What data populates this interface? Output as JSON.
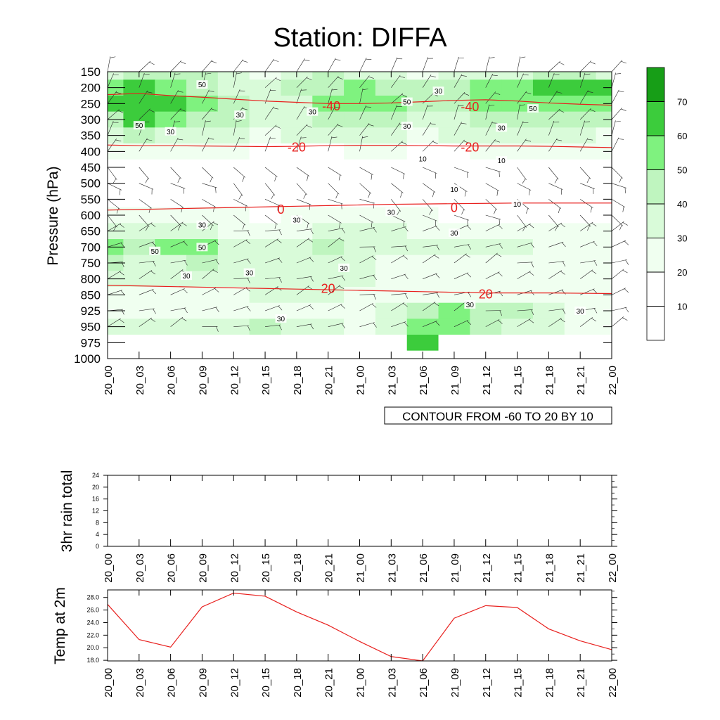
{
  "title": "Station: DIFFA",
  "colors": {
    "temp_contour": "#e8201e",
    "temp_series": "#e8201e",
    "rh_fill": [
      "#ffffff",
      "#ffffff",
      "#f0fff0",
      "#d9fbd9",
      "#bff5bf",
      "#7ff27f",
      "#3ccc3c",
      "#179e17"
    ],
    "wind": "#222222",
    "axis": "#000000"
  },
  "time_labels": [
    "20_00",
    "20_03",
    "20_06",
    "20_09",
    "20_12",
    "20_15",
    "20_18",
    "20_21",
    "21_00",
    "21_03",
    "21_06",
    "21_09",
    "21_12",
    "21_15",
    "21_18",
    "21_21",
    "22_00"
  ],
  "chart_data": [
    {
      "type": "heatmap",
      "title": "Station: DIFFA",
      "ylabel": "Pressure (hPa)",
      "xlabel": "",
      "pressure_levels": [
        150,
        200,
        250,
        300,
        350,
        400,
        450,
        500,
        550,
        600,
        650,
        700,
        750,
        800,
        850,
        925,
        950,
        975,
        1000
      ],
      "info_label": "CONTOUR FROM -60 TO 20 BY 10",
      "colorbar": {
        "levels": [
          10,
          20,
          30,
          40,
          50,
          60,
          70
        ],
        "labels": [
          "10",
          "20",
          "30",
          "40",
          "50",
          "60",
          "70"
        ]
      },
      "rh_grid": [
        [
          35,
          40,
          45,
          40,
          30,
          25,
          30,
          40,
          38,
          30,
          25,
          30,
          30,
          35,
          45,
          40,
          35
        ],
        [
          55,
          60,
          55,
          45,
          35,
          30,
          40,
          45,
          55,
          45,
          40,
          45,
          50,
          55,
          65,
          65,
          60
        ],
        [
          62,
          68,
          62,
          50,
          40,
          35,
          38,
          50,
          58,
          50,
          40,
          48,
          52,
          55,
          55,
          58,
          55
        ],
        [
          48,
          65,
          55,
          45,
          40,
          38,
          35,
          40,
          42,
          40,
          35,
          38,
          40,
          45,
          45,
          45,
          42
        ],
        [
          30,
          40,
          30,
          35,
          30,
          28,
          30,
          30,
          32,
          30,
          28,
          30,
          30,
          30,
          30,
          30,
          28
        ],
        [
          20,
          22,
          20,
          20,
          20,
          18,
          18,
          18,
          20,
          20,
          18,
          18,
          20,
          20,
          20,
          20,
          20
        ],
        [
          10,
          10,
          10,
          10,
          10,
          10,
          10,
          10,
          10,
          10,
          10,
          8,
          8,
          8,
          8,
          8,
          8
        ],
        [
          8,
          8,
          10,
          10,
          10,
          8,
          8,
          8,
          10,
          10,
          10,
          10,
          8,
          8,
          8,
          8,
          8
        ],
        [
          12,
          15,
          15,
          15,
          15,
          15,
          12,
          12,
          12,
          12,
          10,
          10,
          10,
          10,
          10,
          10,
          10
        ],
        [
          25,
          22,
          22,
          22,
          20,
          18,
          20,
          22,
          25,
          25,
          20,
          18,
          18,
          18,
          18,
          18,
          18
        ],
        [
          38,
          35,
          32,
          32,
          28,
          25,
          28,
          30,
          32,
          30,
          28,
          25,
          22,
          20,
          20,
          20,
          20
        ],
        [
          55,
          45,
          50,
          52,
          38,
          32,
          35,
          42,
          38,
          30,
          30,
          30,
          30,
          30,
          28,
          28,
          28
        ],
        [
          40,
          38,
          38,
          40,
          35,
          32,
          35,
          35,
          30,
          28,
          28,
          28,
          28,
          28,
          28,
          28,
          28
        ],
        [
          30,
          30,
          30,
          30,
          32,
          32,
          32,
          32,
          30,
          25,
          22,
          22,
          22,
          22,
          22,
          22,
          22
        ],
        [
          25,
          25,
          25,
          25,
          28,
          30,
          35,
          30,
          25,
          22,
          22,
          22,
          25,
          25,
          25,
          25,
          25
        ],
        [
          28,
          28,
          28,
          28,
          28,
          28,
          28,
          28,
          28,
          30,
          40,
          50,
          48,
          40,
          30,
          28,
          28
        ],
        [
          30,
          30,
          35,
          35,
          38,
          40,
          35,
          30,
          28,
          30,
          55,
          55,
          45,
          35,
          30,
          28,
          28
        ],
        [
          0,
          0,
          0,
          0,
          0,
          0,
          0,
          0,
          0,
          0,
          62,
          0,
          0,
          0,
          0,
          0,
          0
        ],
        [
          0,
          0,
          0,
          0,
          0,
          0,
          0,
          0,
          0,
          0,
          0,
          0,
          0,
          0,
          0,
          0,
          0
        ]
      ],
      "temperature_contours": [
        {
          "label": "-40",
          "p": [
            222,
            218,
            225,
            230,
            236,
            242,
            246,
            250,
            250,
            248,
            244,
            240,
            238,
            242,
            248,
            252,
            255
          ]
        },
        {
          "label": "-20",
          "p": [
            380,
            382,
            382,
            383,
            384,
            385,
            384,
            382,
            381,
            381,
            382,
            383,
            383,
            383,
            384,
            386,
            388
          ]
        },
        {
          "label": "0",
          "p": [
            584,
            582,
            580,
            578,
            576,
            574,
            572,
            570,
            568,
            566,
            565,
            564,
            563,
            562,
            562,
            562,
            562
          ]
        },
        {
          "label": "20",
          "p": [
            820,
            822,
            824,
            826,
            828,
            830,
            832,
            834,
            836,
            838,
            840,
            842,
            844,
            844,
            844,
            845,
            846
          ]
        }
      ],
      "temp_contour_labels": [
        {
          "text": "-40",
          "t": 7.1,
          "p": 258
        },
        {
          "text": "-40",
          "t": 11.5,
          "p": 260
        },
        {
          "text": "-20",
          "t": 6,
          "p": 387
        },
        {
          "text": "-20",
          "t": 11.5,
          "p": 387
        },
        {
          "text": "0",
          "t": 5.5,
          "p": 582
        },
        {
          "text": "0",
          "t": 11,
          "p": 577
        },
        {
          "text": "20",
          "t": 7,
          "p": 830
        },
        {
          "text": "20",
          "t": 12,
          "p": 848
        }
      ],
      "rh_contour_labels": [
        {
          "text": "50",
          "t": 3,
          "p": 190
        },
        {
          "text": "30",
          "t": 10.5,
          "p": 210
        },
        {
          "text": "50",
          "t": 9.5,
          "p": 244
        },
        {
          "text": "30",
          "t": 6.5,
          "p": 275
        },
        {
          "text": "50",
          "t": 13.5,
          "p": 265
        },
        {
          "text": "30",
          "t": 4.2,
          "p": 285
        },
        {
          "text": "50",
          "t": 1,
          "p": 318
        },
        {
          "text": "30",
          "t": 2,
          "p": 337
        },
        {
          "text": "30",
          "t": 9.5,
          "p": 320
        },
        {
          "text": "30",
          "t": 12.5,
          "p": 325
        },
        {
          "text": "10",
          "t": 10,
          "p": 422
        },
        {
          "text": "10",
          "t": 12.5,
          "p": 428
        },
        {
          "text": "10",
          "t": 11,
          "p": 518
        },
        {
          "text": "10",
          "t": 13,
          "p": 565
        },
        {
          "text": "30",
          "t": 9,
          "p": 590
        },
        {
          "text": "30",
          "t": 6,
          "p": 614
        },
        {
          "text": "30",
          "t": 3,
          "p": 630
        },
        {
          "text": "30",
          "t": 11,
          "p": 655
        },
        {
          "text": "50",
          "t": 1.5,
          "p": 712
        },
        {
          "text": "50",
          "t": 3,
          "p": 700
        },
        {
          "text": "30",
          "t": 7.5,
          "p": 765
        },
        {
          "text": "30",
          "t": 4.5,
          "p": 780
        },
        {
          "text": "30",
          "t": 2.5,
          "p": 790
        },
        {
          "text": "30",
          "t": 11.5,
          "p": 895
        },
        {
          "text": "30",
          "t": 15,
          "p": 925
        },
        {
          "text": "30",
          "t": 5.5,
          "p": 937
        }
      ]
    },
    {
      "type": "line",
      "ylabel": "3hr rain total",
      "yticks": [
        0,
        4,
        8,
        12,
        16,
        20,
        24
      ],
      "ylim": [
        0,
        24
      ],
      "values": [
        0,
        0,
        0,
        0,
        0,
        0,
        0,
        0,
        0,
        0,
        0,
        0,
        0,
        0,
        0,
        0,
        0
      ]
    },
    {
      "type": "line",
      "ylabel": "Temp at 2m",
      "yticks": [
        "18.0",
        "20.0",
        "22.0",
        "24.0",
        "26.0",
        "28.0"
      ],
      "ylim": [
        17.9,
        29.2
      ],
      "values": [
        26.9,
        21.3,
        20.1,
        26.5,
        28.7,
        28.2,
        25.7,
        23.6,
        21.0,
        18.6,
        17.9,
        24.7,
        26.7,
        26.4,
        23.0,
        21.1,
        19.7
      ]
    }
  ]
}
